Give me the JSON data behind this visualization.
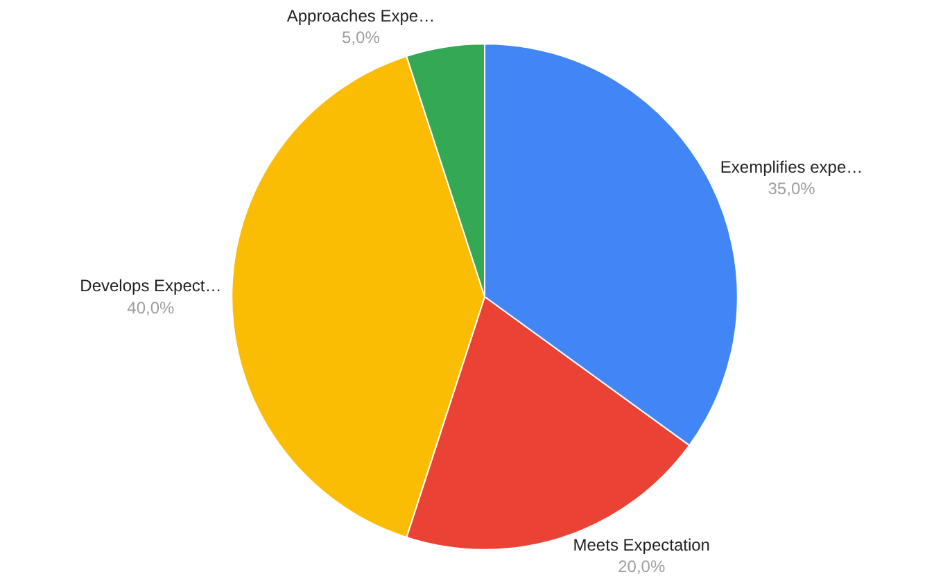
{
  "chart_data": {
    "type": "pie",
    "categories": [
      "Exemplifies expe…",
      "Meets Expectation",
      "Develops Expect…",
      "Approaches Expe…"
    ],
    "values": [
      35,
      20,
      40,
      5
    ],
    "value_labels": [
      "35,0%",
      "20,0%",
      "40,0%",
      "5,0%"
    ],
    "colors": [
      "#4285f4",
      "#ea4335",
      "#fbbc04",
      "#34a853"
    ],
    "legend": false
  }
}
